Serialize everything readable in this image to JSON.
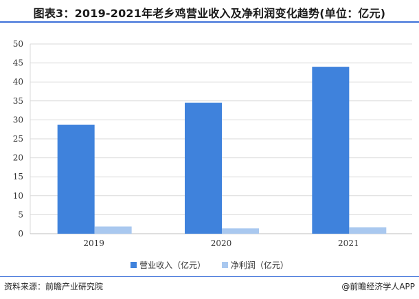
{
  "title": "图表3：2019-2021年老乡鸡营业收入及净利润变化趋势(单位：亿元)",
  "legend": {
    "revenue": "营业收入（亿元）",
    "profit": "净利润（亿元）"
  },
  "source": "资料来源：前瞻产业研究院",
  "watermark": "@前瞻经济学人APP",
  "colors": {
    "revenue": "#3f82dc",
    "profit": "#a9c8ef",
    "grid": "#d9d9d9",
    "title_rule": "#3b6fd8"
  },
  "chart_data": {
    "type": "bar",
    "categories": [
      "2019",
      "2020",
      "2021"
    ],
    "series": [
      {
        "name": "营业收入（亿元）",
        "values": [
          28.7,
          34.5,
          44.0
        ]
      },
      {
        "name": "净利润（亿元）",
        "values": [
          1.9,
          1.4,
          1.7
        ]
      }
    ],
    "ylim": [
      0,
      50
    ],
    "yticks": [
      0,
      5,
      10,
      15,
      20,
      25,
      30,
      35,
      40,
      45,
      50
    ],
    "xlabel": "",
    "ylabel": "",
    "grid": true,
    "legend_position": "bottom"
  }
}
